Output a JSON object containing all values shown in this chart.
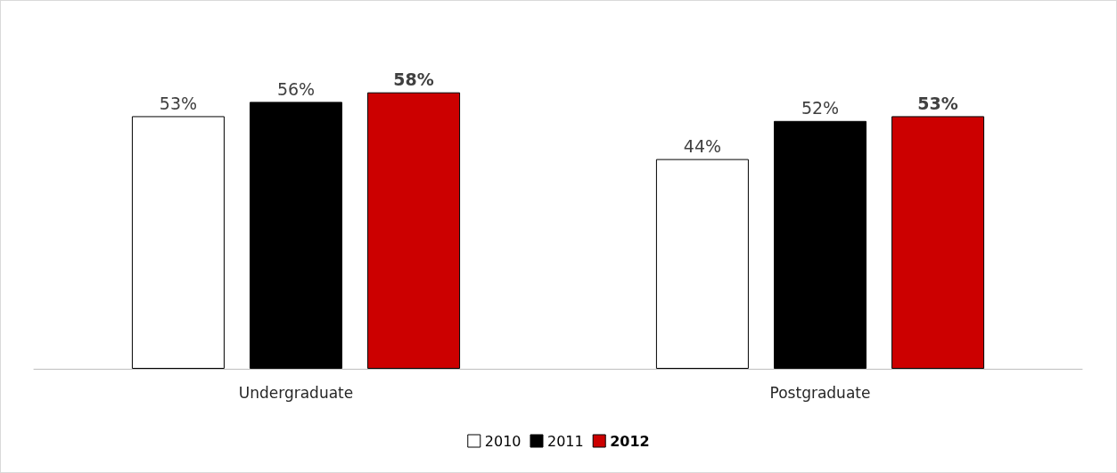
{
  "chart_data": {
    "type": "bar",
    "categories": [
      "Undergraduate",
      "Postgraduate"
    ],
    "series": [
      {
        "name": "2010",
        "color": "#ffffff",
        "values": [
          53,
          44
        ],
        "value_labels": [
          "53%",
          "44%"
        ]
      },
      {
        "name": "2011",
        "color": "#000000",
        "values": [
          56,
          52
        ],
        "value_labels": [
          "56%",
          "52%"
        ]
      },
      {
        "name": "2012",
        "color": "#cc0000",
        "values": [
          58,
          53
        ],
        "value_labels": [
          "58%",
          "53%"
        ]
      }
    ],
    "legend": "bottom",
    "tick_labels": "x"
  }
}
